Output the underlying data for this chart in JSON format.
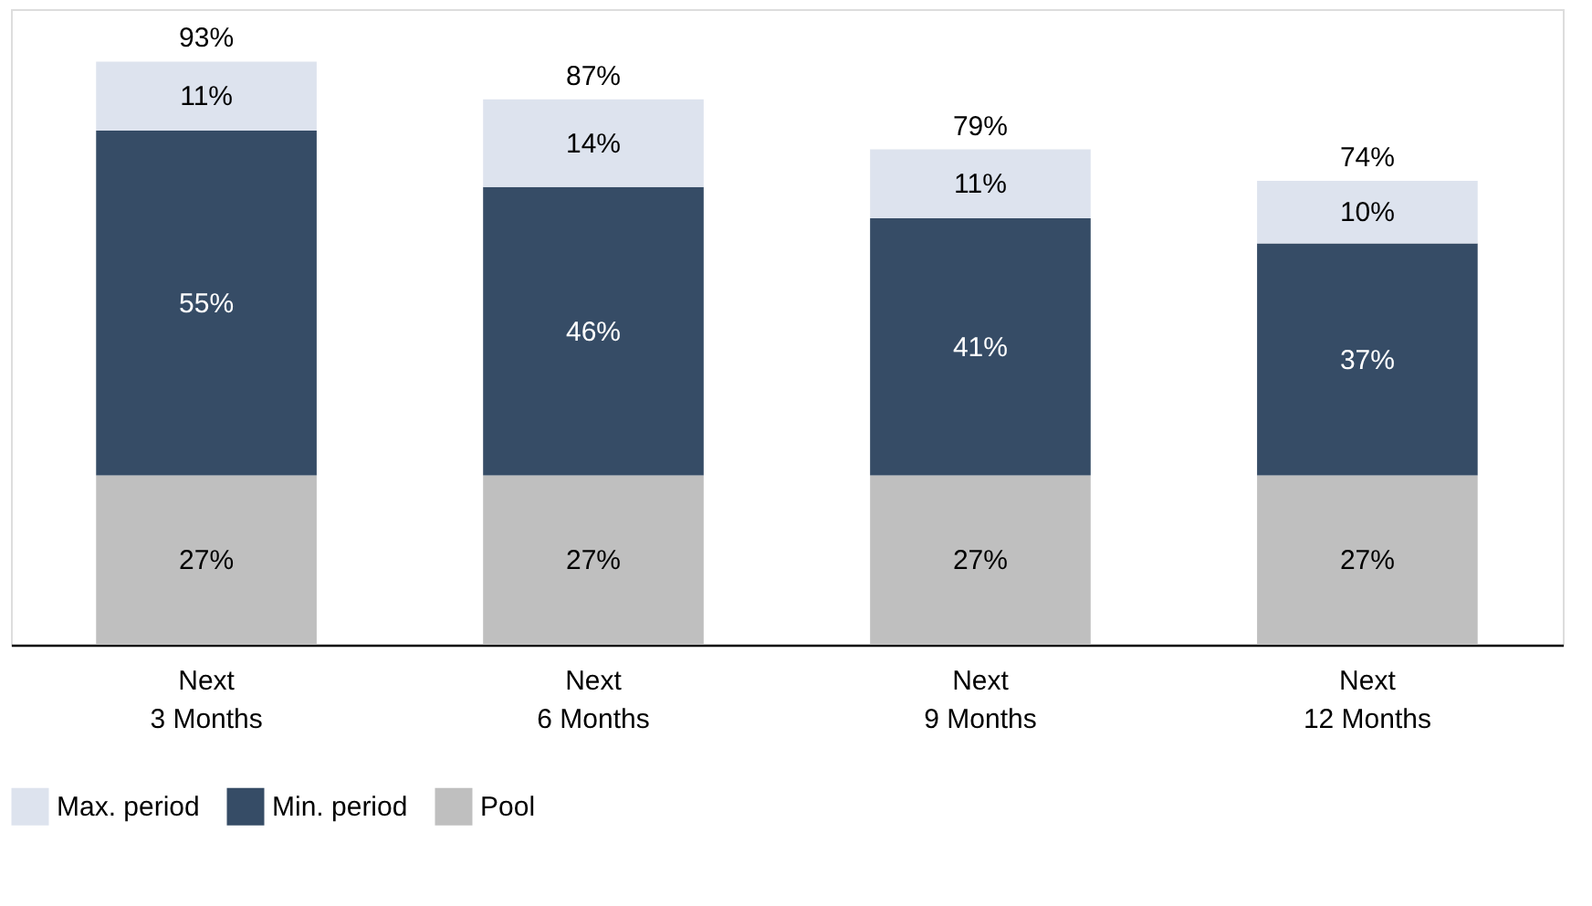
{
  "chart_data": {
    "type": "bar",
    "stacked": true,
    "categories": [
      "Next\n3 Months",
      "Next\n6 Months",
      "Next\n9 Months",
      "Next\n12 Months"
    ],
    "series": [
      {
        "name": "Pool",
        "color": "#bfbfbf",
        "values": [
          27,
          27,
          27,
          27
        ],
        "value_labels": [
          "27%",
          "27%",
          "27%",
          "27%"
        ]
      },
      {
        "name": "Min. period",
        "color": "#364c66",
        "values": [
          55,
          46,
          41,
          37
        ],
        "value_labels": [
          "55%",
          "46%",
          "41%",
          "37%"
        ]
      },
      {
        "name": "Max. period",
        "color": "#dde3ee",
        "values": [
          11,
          14,
          11,
          10
        ],
        "value_labels": [
          "11%",
          "14%",
          "11%",
          "10%"
        ]
      }
    ],
    "totals": [
      "93%",
      "87%",
      "79%",
      "74%"
    ],
    "legend": "bottom",
    "grid": false
  }
}
